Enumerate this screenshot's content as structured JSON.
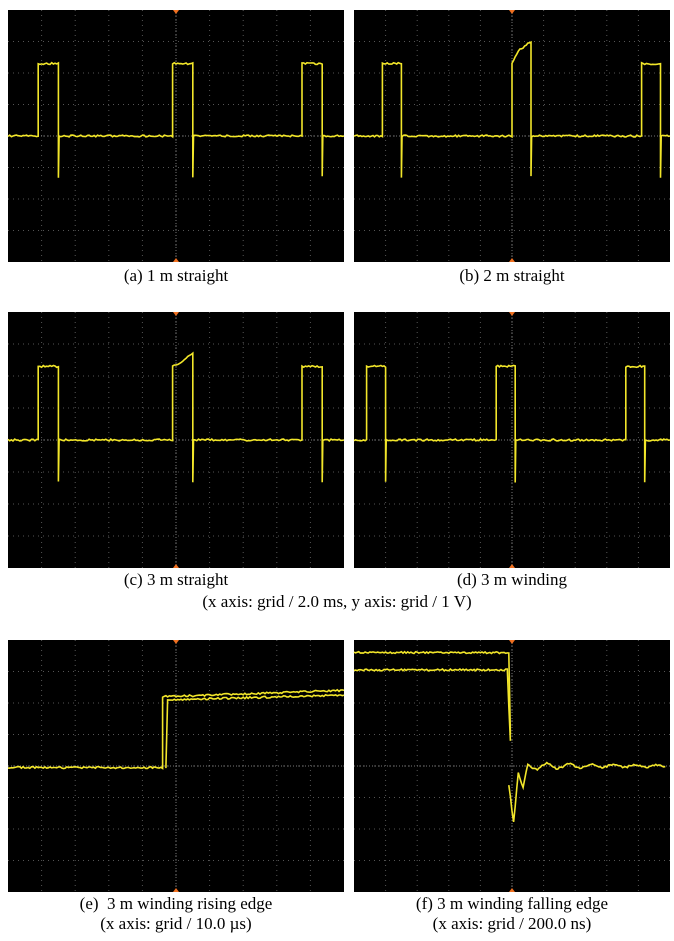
{
  "panels": [
    {
      "caption": "(a) 1 m straight"
    },
    {
      "caption": "(b) 2 m straight"
    },
    {
      "caption": "(c) 3 m straight"
    },
    {
      "caption": "(d) 3 m winding"
    },
    {
      "caption": "(e)  3 m winding rising edge",
      "axis_note": "(x axis: grid / 10.0 µs)"
    },
    {
      "caption": "(f) 3 m winding falling edge",
      "axis_note": "(x axis: grid / 200.0 ns)"
    }
  ],
  "shared_note": "(x axis: grid / 2.0 ms, y axis: grid / 1 V)"
}
